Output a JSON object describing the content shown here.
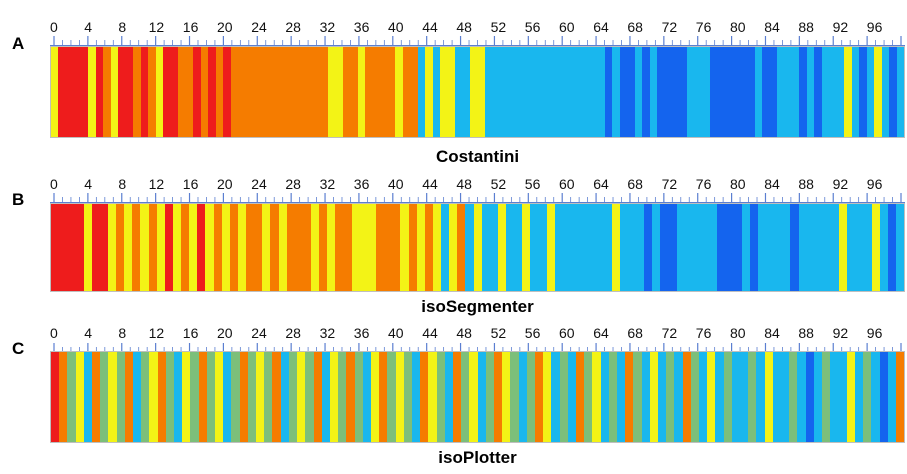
{
  "panels": [
    {
      "letter": "A",
      "caption": "Costantini",
      "ticks": [
        "0",
        "4",
        "8",
        "12",
        "16",
        "20",
        "24",
        "28",
        "32",
        "36",
        "40",
        "44",
        "48",
        "52",
        "56",
        "60",
        "64",
        "68",
        "72",
        "76",
        "80",
        "84",
        "88",
        "92",
        "96"
      ],
      "segments": "YRRRRYROYRROROYRROOROROROOOOOOOOOOOOOYYOOYOOOOYOOBYBYYBBYYBBBBBBBBBBBBBBBBDBDDBDBDDDDBBBDDDDDDBDDBBBDBDBBBYBDBYBDB"
    },
    {
      "letter": "B",
      "caption": "isoSegmenter",
      "ticks": [
        "0",
        "4",
        "8",
        "12",
        "16",
        "20",
        "24",
        "28",
        "32",
        "36",
        "40",
        "44",
        "48",
        "52",
        "56",
        "60",
        "64",
        "68",
        "72",
        "76",
        "80",
        "84",
        "88",
        "92",
        "96"
      ],
      "segments": "RRRRYRRYOYOYOYRYOYRYOYOYOOYOYOOOYOYOOYYYOOOYOYOYBYOBYBBYBBYBBYBBBBBBBYBBBDBDDBBBBBDDDBDBBBBDBBBBBYBBBYBDB"
    },
    {
      "letter": "C",
      "caption": "isoPlotter",
      "ticks": [
        "0",
        "4",
        "8",
        "12",
        "16",
        "20",
        "24",
        "28",
        "32",
        "36",
        "40",
        "44",
        "48",
        "52",
        "56",
        "60",
        "64",
        "68",
        "72",
        "76",
        "80",
        "84",
        "88",
        "92",
        "96"
      ],
      "segments": "ROGYBOGYGOBGYOGBYGOGYBGOGYGOBGYGOBYGOGBYOGYGBOYGBOGYBGOYGBGOYBGBOGYBGBOGBYBGBOGBYBGBBGBYBBGBDBGBBYBGBDBO"
    }
  ],
  "colors": {
    "R": "#ee1c1c",
    "O": "#f57c00",
    "Y": "#f3f316",
    "G": "#7cbf7a",
    "B": "#19b7ee",
    "D": "#1464ee"
  },
  "ruler_color": "#5b7fd1",
  "track_border": "#bfbfbf"
}
